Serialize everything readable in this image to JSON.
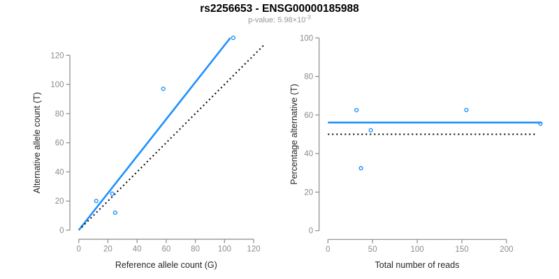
{
  "title": "rs2256653 - ENSG00000185988",
  "subtitle": {
    "base": "p-value: 5.98×10",
    "exponent": "-3"
  },
  "colors": {
    "accent": "#1E90FF",
    "axis": "#8a8a8a",
    "tick_label": "#8c8c8c",
    "axis_title": "#262626",
    "subtitle": "#969696",
    "dotted": "#000000",
    "background": "#ffffff"
  },
  "chart_data": [
    {
      "type": "scatter",
      "panel": "allele-counts",
      "xlabel": "Reference allele count (G)",
      "ylabel": "Alternative allele count (T)",
      "xticks": [
        0,
        20,
        40,
        60,
        80,
        100,
        120
      ],
      "yticks": [
        0,
        20,
        40,
        60,
        80,
        100,
        120
      ],
      "xlim": [
        0,
        120
      ],
      "ylim": [
        0,
        132
      ],
      "grid": false,
      "legend": "none",
      "marker": "open-circle",
      "points": [
        [
          12,
          20
        ],
        [
          23,
          25
        ],
        [
          25,
          12
        ],
        [
          58,
          97
        ],
        [
          106,
          132
        ]
      ],
      "lines": [
        {
          "name": "regression-line",
          "style": "solid",
          "color": "#1E90FF",
          "from": [
            0,
            0
          ],
          "to": [
            104,
            132
          ]
        },
        {
          "name": "identity-line",
          "style": "dotted",
          "color": "#000000",
          "from": [
            2,
            2
          ],
          "to": [
            128,
            128
          ]
        }
      ]
    },
    {
      "type": "scatter",
      "panel": "percentage-vs-coverage",
      "xlabel": "Total number of reads",
      "ylabel": "Percentage alternative (T)",
      "xticks": [
        0,
        50,
        100,
        150,
        200
      ],
      "yticks": [
        0,
        20,
        40,
        60,
        80,
        100
      ],
      "xlim": [
        0,
        238
      ],
      "ylim": [
        0,
        100
      ],
      "grid": false,
      "legend": "none",
      "marker": "open-circle",
      "points": [
        [
          32,
          62.5
        ],
        [
          37,
          32.4
        ],
        [
          48,
          52.1
        ],
        [
          155,
          62.6
        ],
        [
          238,
          55.5
        ]
      ],
      "lines": [
        {
          "name": "mean-percentage-line",
          "style": "solid",
          "color": "#1E90FF",
          "from": [
            0,
            56.1
          ],
          "to": [
            239,
            56.1
          ]
        },
        {
          "name": "expected-50-line",
          "style": "dotted",
          "color": "#000000",
          "from": [
            0,
            50
          ],
          "to": [
            234,
            50
          ]
        }
      ]
    }
  ]
}
